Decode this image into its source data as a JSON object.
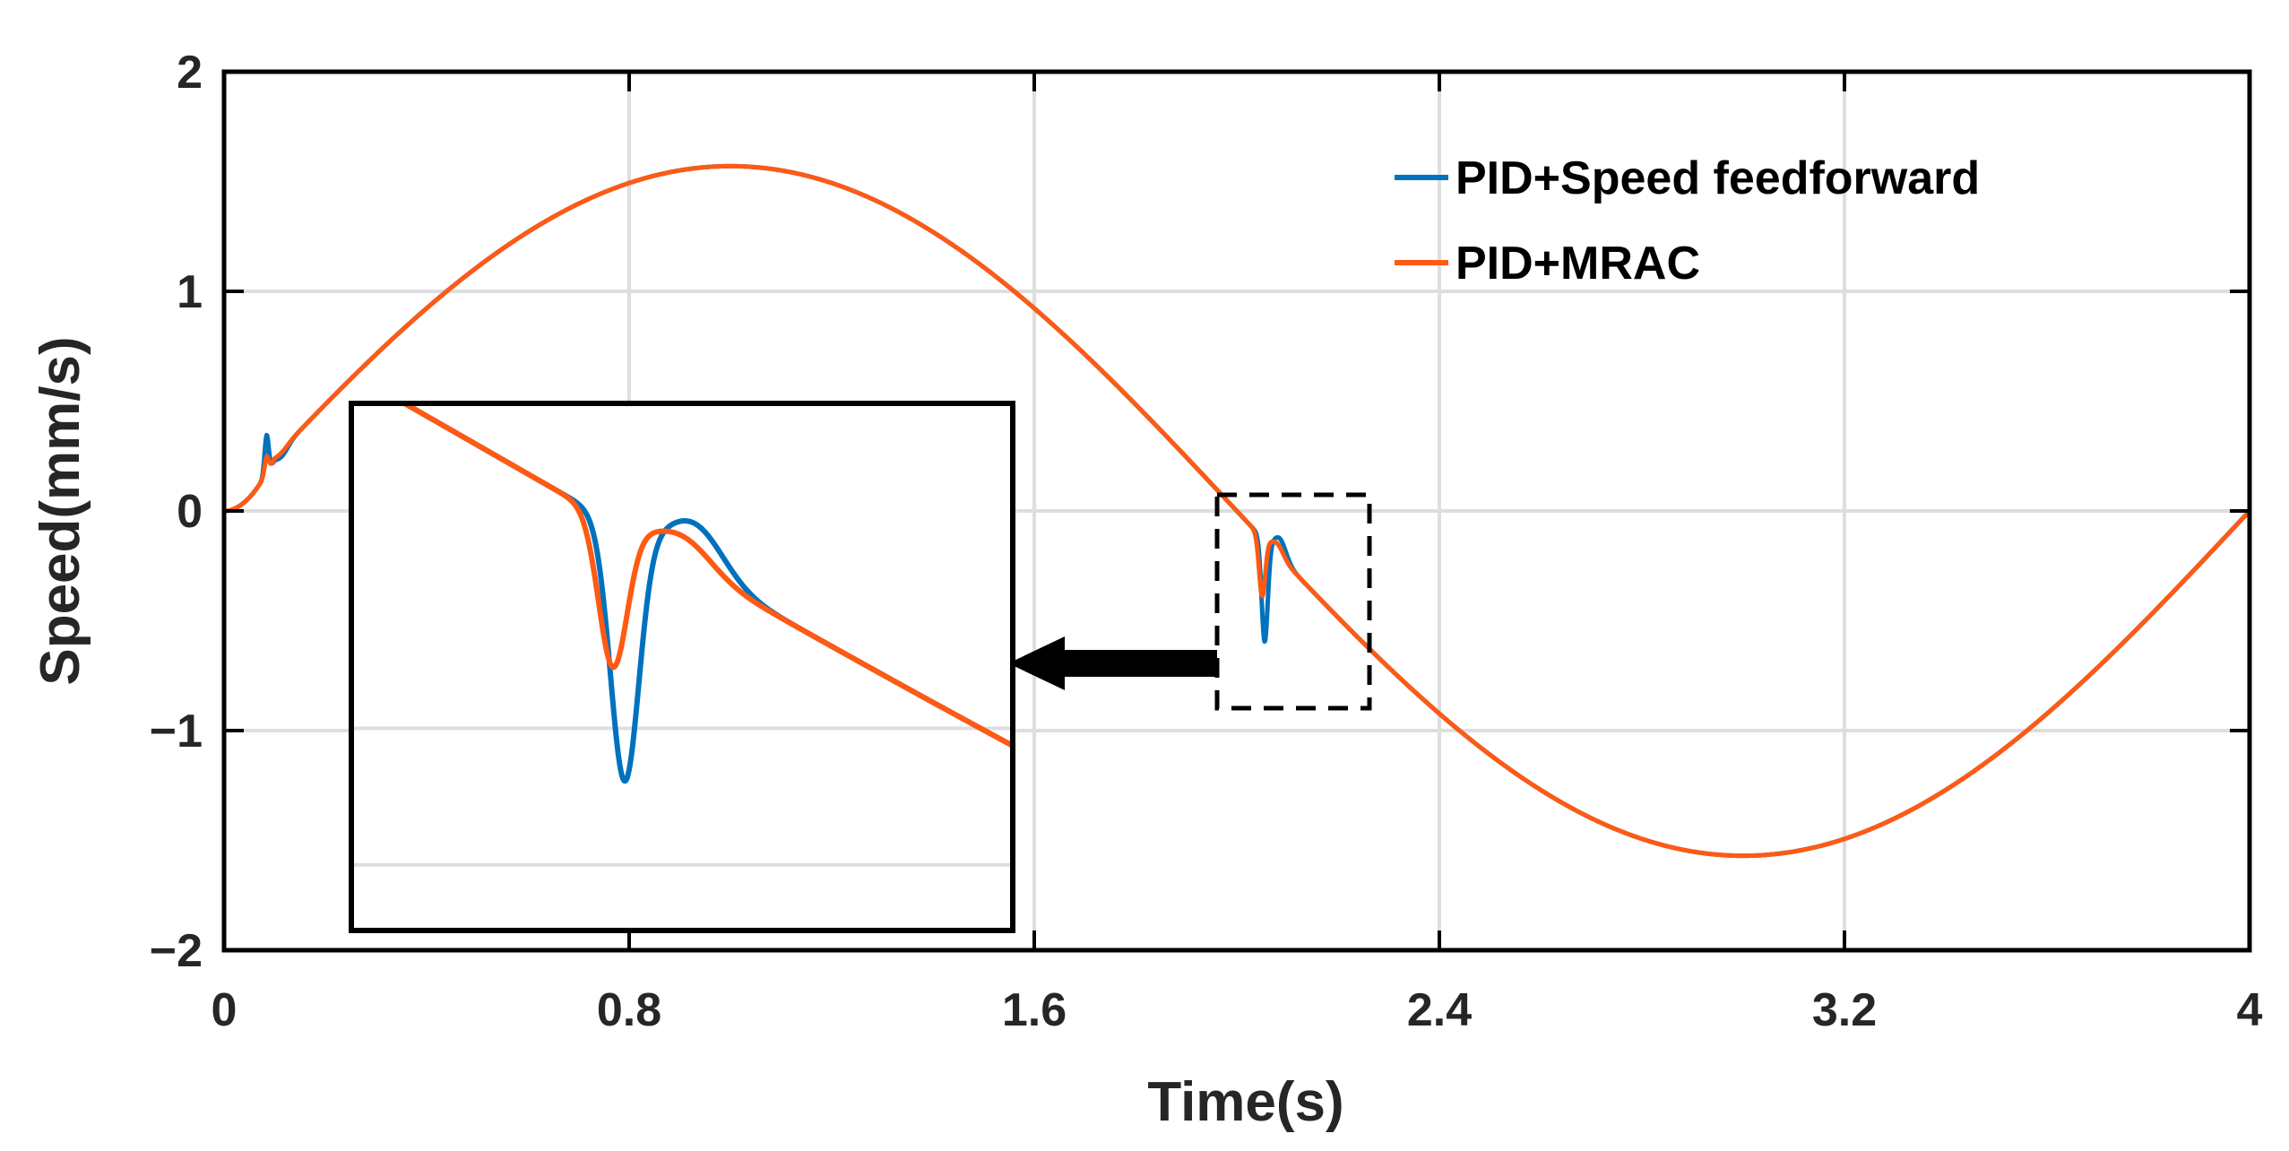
{
  "chart_data": {
    "type": "line",
    "title": "",
    "xlabel": "Time(s)",
    "ylabel": "Speed(mm/s)",
    "xlim": [
      0,
      4
    ],
    "ylim": [
      -2,
      2
    ],
    "xticks": [
      0,
      0.8,
      1.6,
      2.4,
      3.2,
      4
    ],
    "xtick_labels": [
      "0",
      "0.8",
      "1.6",
      "2.4",
      "3.2",
      "4"
    ],
    "yticks": [
      -2,
      -1,
      0,
      1,
      2
    ],
    "ytick_labels": [
      "−2",
      "−1",
      "0",
      "1",
      "2"
    ],
    "grid": true,
    "legend_position": "top-right",
    "signal": {
      "shape": "sine",
      "amplitude": 1.57,
      "period_s": 4.0
    },
    "series": [
      {
        "name": "PID+Speed feedforward",
        "color": "#0072BD",
        "disturbances": [
          {
            "t": 0.084,
            "peak": 0.38
          },
          {
            "t": 2.055,
            "peak": -0.6
          }
        ]
      },
      {
        "name": "PID+MRAC",
        "color": "#FF5A14",
        "disturbances": [
          {
            "t": 0.084,
            "peak": 0.28
          },
          {
            "t": 2.05,
            "peak": -0.39
          }
        ]
      }
    ],
    "inset": {
      "description": "zoomed view",
      "xlim": [
        1.94,
        2.22
      ],
      "ylim": [
        -0.87,
        0.09
      ],
      "arrow": "points from dashed region to zoom box"
    }
  }
}
